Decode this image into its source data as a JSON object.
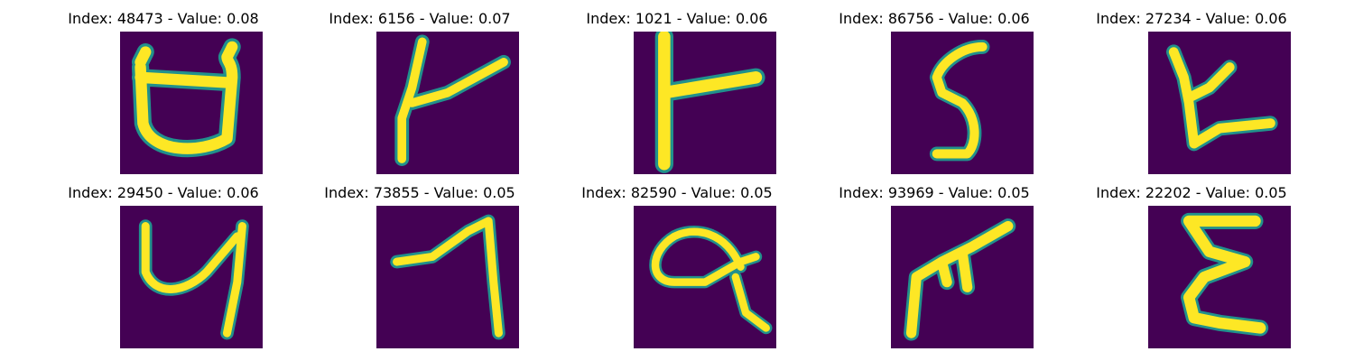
{
  "panels": [
    {
      "title": "Index: 48473 - Value: 0.08",
      "glyph": "glyph-1"
    },
    {
      "title": "Index: 6156 - Value: 0.07",
      "glyph": "glyph-2"
    },
    {
      "title": "Index: 1021 - Value: 0.06",
      "glyph": "glyph-3"
    },
    {
      "title": "Index: 86756 - Value: 0.06",
      "glyph": "glyph-4"
    },
    {
      "title": "Index: 27234 - Value: 0.06",
      "glyph": "glyph-5"
    },
    {
      "title": "Index: 29450 - Value: 0.06",
      "glyph": "glyph-6"
    },
    {
      "title": "Index: 73855 - Value: 0.05",
      "glyph": "glyph-7"
    },
    {
      "title": "Index: 82590 - Value: 0.05",
      "glyph": "glyph-8"
    },
    {
      "title": "Index: 93969 - Value: 0.05",
      "glyph": "glyph-9"
    },
    {
      "title": "Index: 22202 - Value: 0.05",
      "glyph": "glyph-10"
    }
  ],
  "colors": {
    "background": "#440154",
    "stroke": "#fde725",
    "edge": "#21918c"
  }
}
